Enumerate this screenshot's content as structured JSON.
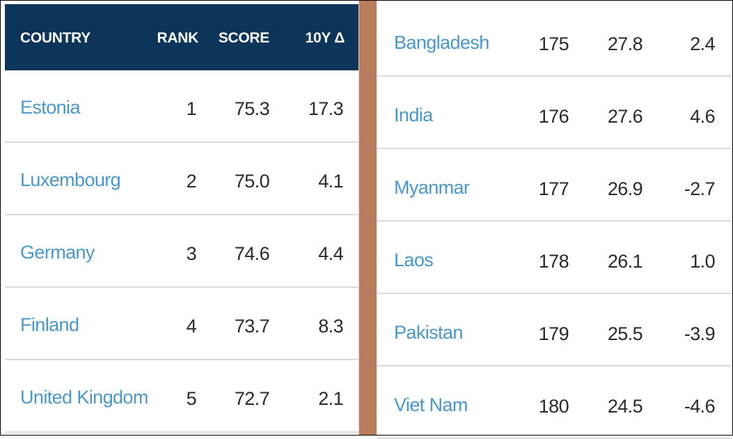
{
  "chart_data": {
    "type": "table",
    "columns": [
      "COUNTRY",
      "RANK",
      "SCORE",
      "10Y Δ"
    ],
    "left_rows": [
      {
        "country": "Estonia",
        "rank": "1",
        "score": "75.3",
        "delta": "17.3"
      },
      {
        "country": "Luxembourg",
        "rank": "2",
        "score": "75.0",
        "delta": "4.1"
      },
      {
        "country": "Germany",
        "rank": "3",
        "score": "74.6",
        "delta": "4.4"
      },
      {
        "country": "Finland",
        "rank": "4",
        "score": "73.7",
        "delta": "8.3"
      },
      {
        "country": "United Kingdom",
        "rank": "5",
        "score": "72.7",
        "delta": "2.1"
      }
    ],
    "right_rows": [
      {
        "country": "Bangladesh",
        "rank": "175",
        "score": "27.8",
        "delta": "2.4"
      },
      {
        "country": "India",
        "rank": "176",
        "score": "27.6",
        "delta": "4.6"
      },
      {
        "country": "Myanmar",
        "rank": "177",
        "score": "26.9",
        "delta": "-2.7"
      },
      {
        "country": "Laos",
        "rank": "178",
        "score": "26.1",
        "delta": "1.0"
      },
      {
        "country": "Pakistan",
        "rank": "179",
        "score": "25.5",
        "delta": "-3.9"
      },
      {
        "country": "Viet Nam",
        "rank": "180",
        "score": "24.5",
        "delta": "-4.6"
      }
    ]
  },
  "colors": {
    "header_bg": "#0c3559",
    "country_link": "#4a97cc",
    "divider": "#b87d5c"
  }
}
